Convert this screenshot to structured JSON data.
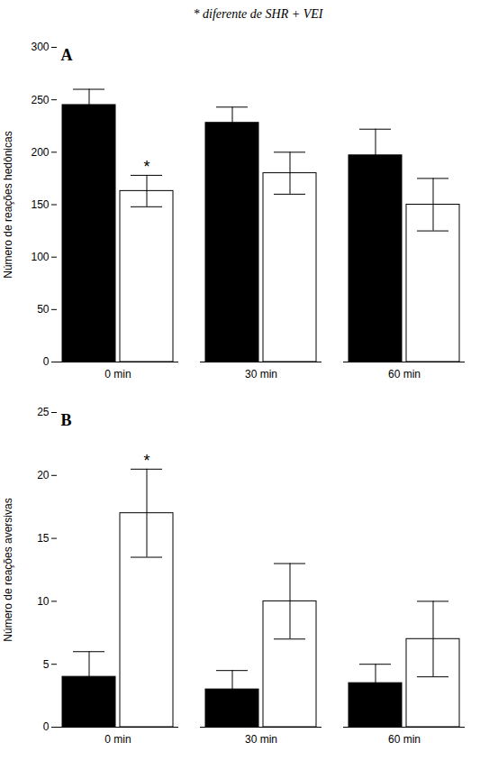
{
  "chart_data": [
    {
      "type": "bar",
      "title": "* diferente de SHR + VEI",
      "panel_label": "A",
      "ylabel": "Número de reações hedônicas",
      "categories": [
        "0 min",
        "30 min",
        "60 min"
      ],
      "series": [
        {
          "color": "#000000",
          "values": [
            245,
            228,
            197
          ],
          "errors": [
            15,
            15,
            25
          ]
        },
        {
          "color": "#ffffff",
          "values": [
            163,
            180,
            150
          ],
          "errors": [
            15,
            20,
            25
          ]
        }
      ],
      "annotations": [
        {
          "text": "*",
          "category": "0 min",
          "series": 1
        }
      ],
      "ylim": [
        0,
        300
      ],
      "yticks": [
        0,
        50,
        100,
        150,
        200,
        250,
        300
      ],
      "grid": false
    },
    {
      "type": "bar",
      "panel_label": "B",
      "ylabel": "Número de reações aversivas",
      "categories": [
        "0 min",
        "30 min",
        "60 min"
      ],
      "series": [
        {
          "color": "#000000",
          "values": [
            4,
            3,
            3.5
          ],
          "errors": [
            2,
            1.5,
            1.5
          ]
        },
        {
          "color": "#ffffff",
          "values": [
            17,
            10,
            7
          ],
          "errors": [
            3.5,
            3,
            3
          ]
        }
      ],
      "annotations": [
        {
          "text": "*",
          "category": "0 min",
          "series": 1
        }
      ],
      "ylim": [
        0,
        25
      ],
      "yticks": [
        0,
        5,
        10,
        15,
        20,
        25
      ],
      "grid": false
    }
  ]
}
